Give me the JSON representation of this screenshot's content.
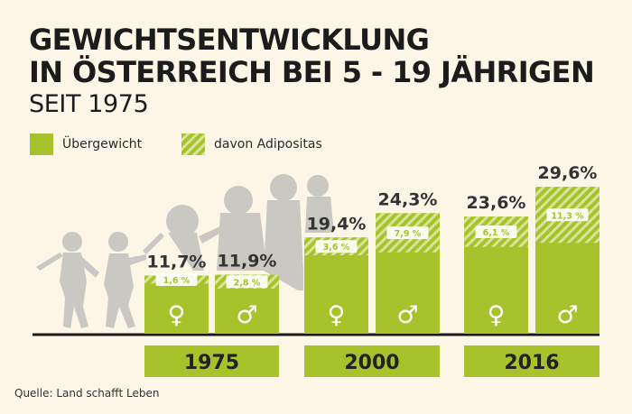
{
  "title_lines": [
    "GEWICHTSENTWICKLUNG",
    "IN ÖSTERREICH BEI 5 - 19 JÄHRIGEN"
  ],
  "subtitle": "SEIT 1975",
  "legend": [
    {
      "label": "Übergewicht",
      "pattern": "solid"
    },
    {
      "label": "davon Adipositas",
      "pattern": "hatched"
    }
  ],
  "source": "Quelle: Land schafft Leben",
  "colors": {
    "green": "#a8c22b",
    "hatch_light": "#d7e59a",
    "silhouette": "#c9c8c2",
    "text": "#1f1f1f",
    "baseline": "#1a1a1a"
  },
  "chart_data": {
    "type": "bar",
    "unit": "%",
    "groups": [
      "1975",
      "2000",
      "2016"
    ],
    "bars": [
      {
        "group": "1975",
        "sex": "female",
        "symbol": "♀",
        "overweight": 11.7,
        "overweight_label": "11,7%",
        "obesity": 1.6,
        "obesity_label": "1,6 %"
      },
      {
        "group": "1975",
        "sex": "male",
        "symbol": "♂",
        "overweight": 11.9,
        "overweight_label": "11,9%",
        "obesity": 2.8,
        "obesity_label": "2,8 %"
      },
      {
        "group": "2000",
        "sex": "female",
        "symbol": "♀",
        "overweight": 19.4,
        "overweight_label": "19,4%",
        "obesity": 3.6,
        "obesity_label": "3,6 %"
      },
      {
        "group": "2000",
        "sex": "male",
        "symbol": "♂",
        "overweight": 24.3,
        "overweight_label": "24,3%",
        "obesity": 7.9,
        "obesity_label": "7,9 %"
      },
      {
        "group": "2016",
        "sex": "female",
        "symbol": "♀",
        "overweight": 23.6,
        "overweight_label": "23,6%",
        "obesity": 6.1,
        "obesity_label": "6,1 %"
      },
      {
        "group": "2016",
        "sex": "male",
        "symbol": "♂",
        "overweight": 29.6,
        "overweight_label": "29,6%",
        "obesity": 11.3,
        "obesity_label": "11,3 %"
      }
    ],
    "series": [
      {
        "name": "Übergewicht"
      },
      {
        "name": "davon Adipositas"
      }
    ]
  }
}
